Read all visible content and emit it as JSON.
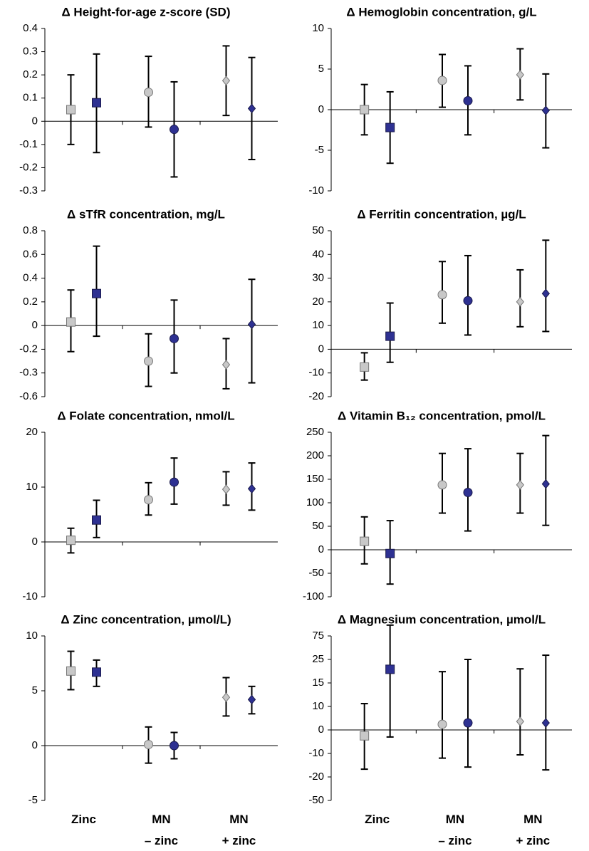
{
  "chart_data": [
    {
      "type": "errorbar",
      "title": "Δ Height-for-age z-score (SD)",
      "ylim": [
        -0.3,
        0.4
      ],
      "yticks": [
        -0.3,
        -0.2,
        -0.1,
        0,
        0.1,
        0.2,
        0.3,
        0.4
      ],
      "markers": [
        "square",
        "circle",
        "diamond"
      ],
      "series": [
        {
          "color": "#c8c8c8",
          "values": [
            0.05,
            0.125,
            0.175
          ],
          "low": [
            -0.1,
            -0.025,
            0.025
          ],
          "high": [
            0.2,
            0.28,
            0.325
          ]
        },
        {
          "color": "#2e3192",
          "values": [
            0.08,
            -0.035,
            0.055
          ],
          "low": [
            -0.135,
            -0.24,
            -0.165
          ],
          "high": [
            0.29,
            0.17,
            0.275
          ]
        }
      ]
    },
    {
      "type": "errorbar",
      "title": "Δ Hemoglobin concentration, g/L",
      "ylim": [
        -10,
        10
      ],
      "yticks": [
        -10,
        -5,
        0,
        5,
        10
      ],
      "markers": [
        "square",
        "circle",
        "diamond"
      ],
      "series": [
        {
          "color": "#c8c8c8",
          "values": [
            0,
            3.6,
            4.3
          ],
          "low": [
            -3.1,
            0.3,
            1.2
          ],
          "high": [
            3.1,
            6.8,
            7.5
          ]
        },
        {
          "color": "#2e3192",
          "values": [
            -2.2,
            1.1,
            -0.1
          ],
          "low": [
            -6.6,
            -3.1,
            -4.7
          ],
          "high": [
            2.2,
            5.4,
            4.4
          ]
        }
      ]
    },
    {
      "type": "errorbar",
      "title": "Δ sTfR concentration, mg/L",
      "ylim": [
        -0.6,
        0.8
      ],
      "yticks": [
        -0.6,
        -0.3,
        -0.2,
        0,
        0.2,
        0.4,
        0.6,
        0.8
      ],
      "markers": [
        "square",
        "circle",
        "diamond"
      ],
      "series": [
        {
          "color": "#c8c8c8",
          "values": [
            0.03,
            -0.25,
            -0.265
          ],
          "low": [
            -0.21,
            -0.47,
            -0.5
          ],
          "high": [
            0.3,
            -0.07,
            -0.11
          ]
        },
        {
          "color": "#2e3192",
          "values": [
            0.27,
            -0.11,
            0.01
          ],
          "low": [
            -0.09,
            -0.3,
            -0.425
          ],
          "high": [
            0.67,
            0.215,
            0.39
          ]
        }
      ]
    },
    {
      "type": "errorbar",
      "title": "Δ Ferritin concentration, µg/L",
      "ylim": [
        -20,
        50
      ],
      "yticks": [
        -20,
        -10,
        0,
        10,
        20,
        30,
        40,
        50
      ],
      "markers": [
        "square",
        "circle",
        "diamond"
      ],
      "series": [
        {
          "color": "#c8c8c8",
          "values": [
            -7.5,
            23,
            20
          ],
          "low": [
            -13,
            11,
            9.5
          ],
          "high": [
            -1.5,
            37,
            33.5
          ]
        },
        {
          "color": "#2e3192",
          "values": [
            5.5,
            20.5,
            23.5
          ],
          "low": [
            -5.5,
            6,
            7.5
          ],
          "high": [
            19.5,
            39.5,
            46
          ]
        }
      ]
    },
    {
      "type": "errorbar",
      "title": "Δ Folate concentration, nmol/L",
      "ylim": [
        -10,
        20
      ],
      "yticks": [
        -10,
        0,
        10,
        20
      ],
      "markers": [
        "square",
        "circle",
        "diamond"
      ],
      "series": [
        {
          "color": "#c8c8c8",
          "values": [
            0.3,
            7.7,
            9.6
          ],
          "low": [
            -2,
            4.9,
            6.7
          ],
          "high": [
            2.5,
            10.8,
            12.8
          ]
        },
        {
          "color": "#2e3192",
          "values": [
            4,
            10.9,
            9.7
          ],
          "low": [
            0.8,
            6.9,
            5.8
          ],
          "high": [
            7.6,
            15.3,
            14.4
          ]
        }
      ]
    },
    {
      "type": "errorbar",
      "title": "Δ Vitamin B₁₂ concentration, pmol/L",
      "ylim": [
        -100,
        250
      ],
      "yticks": [
        -100,
        -50,
        0,
        50,
        100,
        150,
        200,
        250
      ],
      "markers": [
        "square",
        "circle",
        "diamond"
      ],
      "series": [
        {
          "color": "#c8c8c8",
          "values": [
            18,
            138,
            138
          ],
          "low": [
            -30,
            78,
            78
          ],
          "high": [
            70,
            205,
            205
          ]
        },
        {
          "color": "#2e3192",
          "values": [
            -8,
            122,
            140
          ],
          "low": [
            -73,
            40,
            52
          ],
          "high": [
            62,
            215,
            243
          ]
        }
      ]
    },
    {
      "type": "errorbar",
      "title": "Δ Zinc concentration, µmol/L)",
      "ylim": [
        -5,
        10
      ],
      "yticks": [
        -5,
        0,
        5,
        10
      ],
      "markers": [
        "square",
        "circle",
        "diamond"
      ],
      "categories": [
        "Zinc",
        "MN\n– zinc",
        "MN\n+ zinc"
      ],
      "series": [
        {
          "color": "#c8c8c8",
          "values": [
            6.8,
            0.1,
            4.4
          ],
          "low": [
            5.1,
            -1.6,
            2.7
          ],
          "high": [
            8.6,
            1.7,
            6.2
          ]
        },
        {
          "color": "#2e3192",
          "values": [
            6.7,
            0,
            4.2
          ],
          "low": [
            5.4,
            -1.2,
            2.9
          ],
          "high": [
            7.8,
            1.2,
            5.4
          ]
        }
      ]
    },
    {
      "type": "errorbar",
      "title": "Δ Magnesium concentration, µmol/L",
      "ylim": [
        -50,
        75
      ],
      "yticks": [
        -50,
        -20,
        -10,
        0,
        10,
        15,
        25,
        75
      ],
      "markers": [
        "square",
        "circle",
        "diamond"
      ],
      "categories": [
        "Zinc",
        "MN\n– zinc",
        "MN\n+ zinc"
      ],
      "series": [
        {
          "color": "#c8c8c8",
          "values": [
            -2.5,
            2.4,
            3.6
          ],
          "low": [
            -16.7,
            -12,
            -10.6
          ],
          "high": [
            10.6,
            19.8,
            21
          ]
        },
        {
          "color": "#2e3192",
          "values": [
            20.8,
            3,
            3
          ],
          "low": [
            -3,
            -15.8,
            -17
          ],
          "high": [
            98,
            25,
            34
          ]
        }
      ]
    }
  ]
}
